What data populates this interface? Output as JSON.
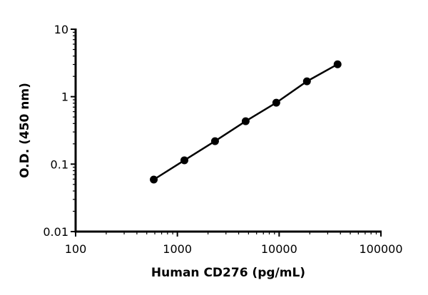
{
  "chart_data": {
    "type": "line",
    "title": "",
    "xlabel": "Human CD276 (pg/mL)",
    "ylabel": "O.D. (450 nm)",
    "x_scale": "log",
    "y_scale": "log",
    "xlim": [
      100,
      100000
    ],
    "ylim": [
      0.01,
      10
    ],
    "x_ticks": [
      "100",
      "1000",
      "10000",
      "100000"
    ],
    "y_ticks": [
      "0.01",
      "0.1",
      "1",
      "10"
    ],
    "grid": false,
    "color": "#000000",
    "series": [
      {
        "x": [
          586,
          1172,
          2344,
          4688,
          9375,
          18750,
          37500
        ],
        "y": [
          0.059,
          0.114,
          0.219,
          0.433,
          0.815,
          1.69,
          3.02
        ]
      }
    ]
  }
}
